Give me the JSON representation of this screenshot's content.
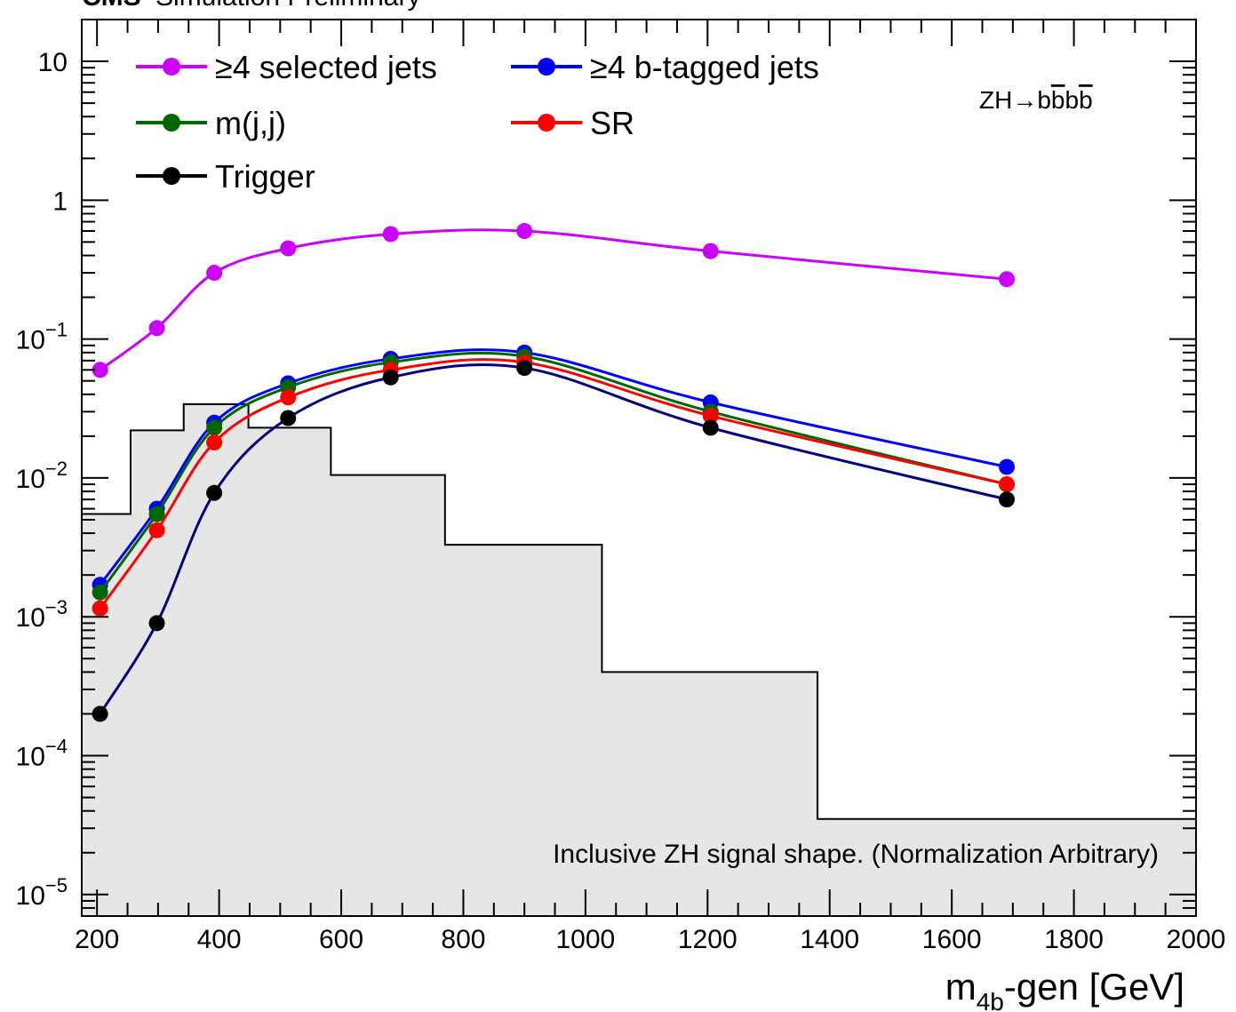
{
  "header": {
    "experiment": "CMS",
    "status": "Simulation Preliminary"
  },
  "process_label": "ZH→b̅b̅b̅b̅",
  "process_label_parts": [
    "ZH→b",
    "b",
    "b",
    "b"
  ],
  "annotation": "Inclusive ZH signal shape. (Normalization Arbitrary)",
  "xlabel": {
    "main": "m",
    "sub": "4b",
    "rest": "-gen [GeV]"
  },
  "colors": {
    "selected_jets": "#cc00ff",
    "btagged_jets": "#0000ff",
    "mjj": "#006600",
    "sr": "#ff0000",
    "trigger": "#000000",
    "trigger_line": "#000080",
    "hist_fill": "#e6e6e6"
  },
  "chart_data": {
    "type": "line",
    "log_y": true,
    "xlim": [
      175,
      2000
    ],
    "ylim": [
      7e-06,
      20
    ],
    "x_ticks": [
      200,
      400,
      600,
      800,
      1000,
      1200,
      1400,
      1600,
      1800,
      2000
    ],
    "y_ticks": [
      {
        "value": 1e-05,
        "base": "10",
        "exp": "−5"
      },
      {
        "value": 0.0001,
        "base": "10",
        "exp": "−4"
      },
      {
        "value": 0.001,
        "base": "10",
        "exp": "−3"
      },
      {
        "value": 0.01,
        "base": "10",
        "exp": "−2"
      },
      {
        "value": 0.1,
        "base": "10",
        "exp": "−1"
      },
      {
        "value": 1,
        "base": "1",
        "exp": ""
      },
      {
        "value": 10,
        "base": "10",
        "exp": ""
      }
    ],
    "x": [
      205,
      298,
      392,
      513,
      681,
      900,
      1205,
      1690
    ],
    "series": [
      {
        "name": "≥4 selected jets",
        "key": "selected_jets",
        "values": [
          0.06,
          0.12,
          0.3,
          0.45,
          0.57,
          0.6,
          0.43,
          0.27
        ]
      },
      {
        "name": "≥4 b-tagged jets",
        "key": "btagged_jets",
        "values": [
          0.0017,
          0.006,
          0.025,
          0.048,
          0.072,
          0.08,
          0.035,
          0.012
        ]
      },
      {
        "name": "m(j,j)",
        "key": "mjj",
        "values": [
          0.0015,
          0.0055,
          0.023,
          0.045,
          0.068,
          0.075,
          0.03,
          0.009
        ]
      },
      {
        "name": "SR",
        "key": "sr",
        "values": [
          0.00115,
          0.0042,
          0.018,
          0.038,
          0.06,
          0.068,
          0.028,
          0.009
        ]
      },
      {
        "name": "Trigger",
        "key": "trigger",
        "values": [
          0.0002,
          0.0009,
          0.0078,
          0.027,
          0.053,
          0.062,
          0.023,
          0.007
        ]
      }
    ],
    "histogram": {
      "edges": [
        175,
        255,
        342,
        448,
        583,
        770,
        1027,
        1380,
        2000
      ],
      "values": [
        0.0055,
        0.022,
        0.034,
        0.023,
        0.0105,
        0.0033,
        0.0004,
        3.5e-05
      ]
    }
  }
}
